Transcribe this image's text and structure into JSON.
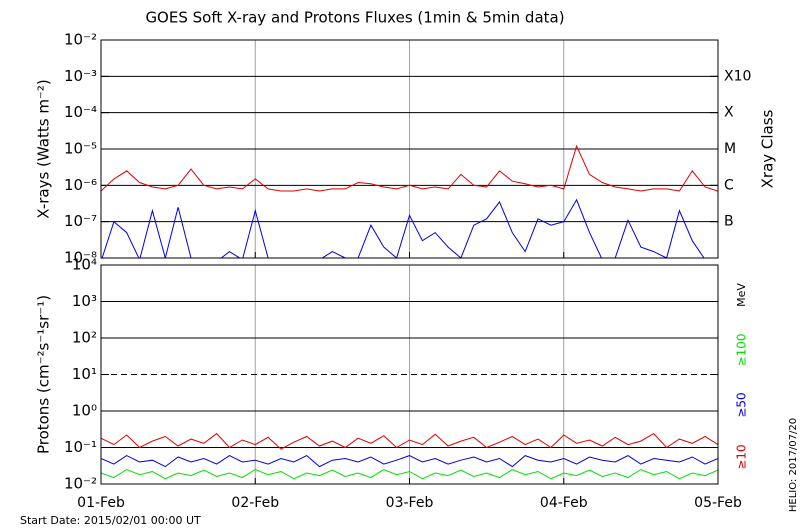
{
  "chart_data": [
    {
      "type": "line",
      "title": "GOES Soft X-ray and Protons Fluxes   (1min & 5min data)",
      "y_label": "X-rays (Watts m⁻²)",
      "right_label": "Xray Class",
      "log_scale": true,
      "grid": true,
      "xlim": [
        0,
        96
      ],
      "xticks": [
        0,
        24,
        48,
        72,
        96
      ],
      "ylim": [
        1e-08,
        0.01
      ],
      "yticks": [
        {
          "value": 1e-08,
          "label": "10⁻⁸"
        },
        {
          "value": 1e-07,
          "label": "10⁻⁷"
        },
        {
          "value": 1e-06,
          "label": "10⁻⁶"
        },
        {
          "value": 1e-05,
          "label": "10⁻⁵"
        },
        {
          "value": 0.0001,
          "label": "10⁻⁴"
        },
        {
          "value": 0.001,
          "label": "10⁻³"
        },
        {
          "value": 0.01,
          "label": "10⁻²"
        }
      ],
      "right_ticks": [
        {
          "value": 1e-07,
          "label": "B"
        },
        {
          "value": 1e-06,
          "label": "C"
        },
        {
          "value": 1e-05,
          "label": "M"
        },
        {
          "value": 0.0001,
          "label": "X"
        },
        {
          "value": 0.001,
          "label": "X10"
        }
      ],
      "x": [
        0,
        2,
        4,
        6,
        8,
        10,
        12,
        14,
        16,
        18,
        20,
        22,
        24,
        26,
        28,
        30,
        32,
        34,
        36,
        38,
        40,
        42,
        44,
        46,
        48,
        50,
        52,
        54,
        56,
        58,
        60,
        62,
        64,
        66,
        68,
        70,
        72,
        74,
        76,
        78,
        80,
        82,
        84,
        86,
        88,
        90,
        92,
        94,
        96
      ],
      "series": [
        {
          "color": "#e00000",
          "values": [
            7e-07,
            1.5e-06,
            2.5e-06,
            1.2e-06,
            9e-07,
            8e-07,
            1e-06,
            2.8e-06,
            1e-06,
            8e-07,
            9e-07,
            8e-07,
            1.5e-06,
            8e-07,
            7e-07,
            7e-07,
            8e-07,
            7e-07,
            8e-07,
            8e-07,
            1.2e-06,
            1.1e-06,
            9e-07,
            8e-07,
            1e-06,
            8e-07,
            9e-07,
            8e-07,
            2e-06,
            1e-06,
            9e-07,
            2.5e-06,
            1.3e-06,
            1.1e-06,
            9e-07,
            1e-06,
            8e-07,
            1.2e-05,
            2e-06,
            1.2e-06,
            9e-07,
            8e-07,
            7e-07,
            8e-07,
            8e-07,
            7e-07,
            2.5e-06,
            9e-07,
            7e-07
          ]
        },
        {
          "color": "#0000e0",
          "values": [
            8e-09,
            1e-07,
            5e-08,
            9e-09,
            2e-07,
            1e-08,
            2.5e-07,
            1e-08,
            9e-09,
            8e-09,
            1.5e-08,
            9e-09,
            2e-07,
            1e-08,
            8e-09,
            9e-09,
            8e-09,
            9e-09,
            1.5e-08,
            1e-08,
            1e-08,
            8e-08,
            2e-08,
            1e-08,
            1.5e-07,
            3e-08,
            5e-08,
            2e-08,
            1e-08,
            8e-08,
            1.2e-07,
            3.5e-07,
            5e-08,
            1.5e-08,
            1.2e-07,
            8e-08,
            1e-07,
            4e-07,
            5e-08,
            9e-09,
            1e-08,
            1.1e-07,
            2e-08,
            1.5e-08,
            1e-08,
            2e-07,
            3e-08,
            9e-09,
            1e-08
          ]
        }
      ]
    },
    {
      "type": "line",
      "y_label": "Protons (cm⁻²s⁻¹sr⁻¹)",
      "units_label": "MeV",
      "log_scale": true,
      "grid": true,
      "xlim": [
        0,
        96
      ],
      "xticks": [
        {
          "value": 0,
          "label": "01-Feb"
        },
        {
          "value": 24,
          "label": "02-Feb"
        },
        {
          "value": 48,
          "label": "03-Feb"
        },
        {
          "value": 72,
          "label": "04-Feb"
        },
        {
          "value": 96,
          "label": "05-Feb"
        }
      ],
      "ylim": [
        0.01,
        10000
      ],
      "yticks": [
        {
          "value": 0.01,
          "label": "10⁻²"
        },
        {
          "value": 0.1,
          "label": "10⁻¹"
        },
        {
          "value": 1,
          "label": "10⁰"
        },
        {
          "value": 10,
          "label": "10¹",
          "dashed": true
        },
        {
          "value": 100,
          "label": "10²"
        },
        {
          "value": 1000,
          "label": "10³"
        },
        {
          "value": 10000,
          "label": "10⁴"
        }
      ],
      "x": [
        0,
        2,
        4,
        6,
        8,
        10,
        12,
        14,
        16,
        18,
        20,
        22,
        24,
        26,
        28,
        30,
        32,
        34,
        36,
        38,
        40,
        42,
        44,
        46,
        48,
        50,
        52,
        54,
        56,
        58,
        60,
        62,
        64,
        66,
        68,
        70,
        72,
        74,
        76,
        78,
        80,
        82,
        84,
        86,
        88,
        90,
        92,
        94,
        96
      ],
      "series": [
        {
          "name": "≥100",
          "color": "#00e000",
          "values": [
            0.02,
            0.015,
            0.025,
            0.018,
            0.022,
            0.014,
            0.02,
            0.017,
            0.024,
            0.016,
            0.02,
            0.015,
            0.025,
            0.018,
            0.022,
            0.014,
            0.02,
            0.017,
            0.024,
            0.016,
            0.02,
            0.015,
            0.025,
            0.018,
            0.022,
            0.014,
            0.02,
            0.017,
            0.024,
            0.016,
            0.02,
            0.015,
            0.025,
            0.018,
            0.022,
            0.014,
            0.02,
            0.017,
            0.024,
            0.016,
            0.02,
            0.015,
            0.025,
            0.018,
            0.022,
            0.014,
            0.02,
            0.017,
            0.024
          ]
        },
        {
          "name": "≥50",
          "color": "#0000e0",
          "values": [
            0.05,
            0.035,
            0.06,
            0.04,
            0.045,
            0.03,
            0.055,
            0.04,
            0.05,
            0.035,
            0.06,
            0.04,
            0.045,
            0.035,
            0.05,
            0.04,
            0.06,
            0.03,
            0.045,
            0.05,
            0.04,
            0.055,
            0.035,
            0.045,
            0.06,
            0.04,
            0.05,
            0.035,
            0.045,
            0.055,
            0.04,
            0.05,
            0.03,
            0.06,
            0.045,
            0.04,
            0.05,
            0.035,
            0.055,
            0.045,
            0.04,
            0.06,
            0.035,
            0.05,
            0.045,
            0.04,
            0.055,
            0.035,
            0.05
          ]
        },
        {
          "name": "≥10",
          "color": "#e00000",
          "values": [
            0.18,
            0.12,
            0.22,
            0.1,
            0.15,
            0.2,
            0.11,
            0.17,
            0.13,
            0.24,
            0.1,
            0.16,
            0.12,
            0.19,
            0.09,
            0.14,
            0.2,
            0.11,
            0.15,
            0.1,
            0.18,
            0.13,
            0.21,
            0.1,
            0.16,
            0.12,
            0.23,
            0.11,
            0.15,
            0.19,
            0.1,
            0.14,
            0.2,
            0.12,
            0.17,
            0.1,
            0.22,
            0.13,
            0.16,
            0.11,
            0.19,
            0.12,
            0.15,
            0.24,
            0.1,
            0.17,
            0.13,
            0.2,
            0.12
          ]
        }
      ]
    }
  ],
  "start_date": "Start Date: 2015/02/01 00:00 UT",
  "stamp": "HELIO: 2017/07/20"
}
